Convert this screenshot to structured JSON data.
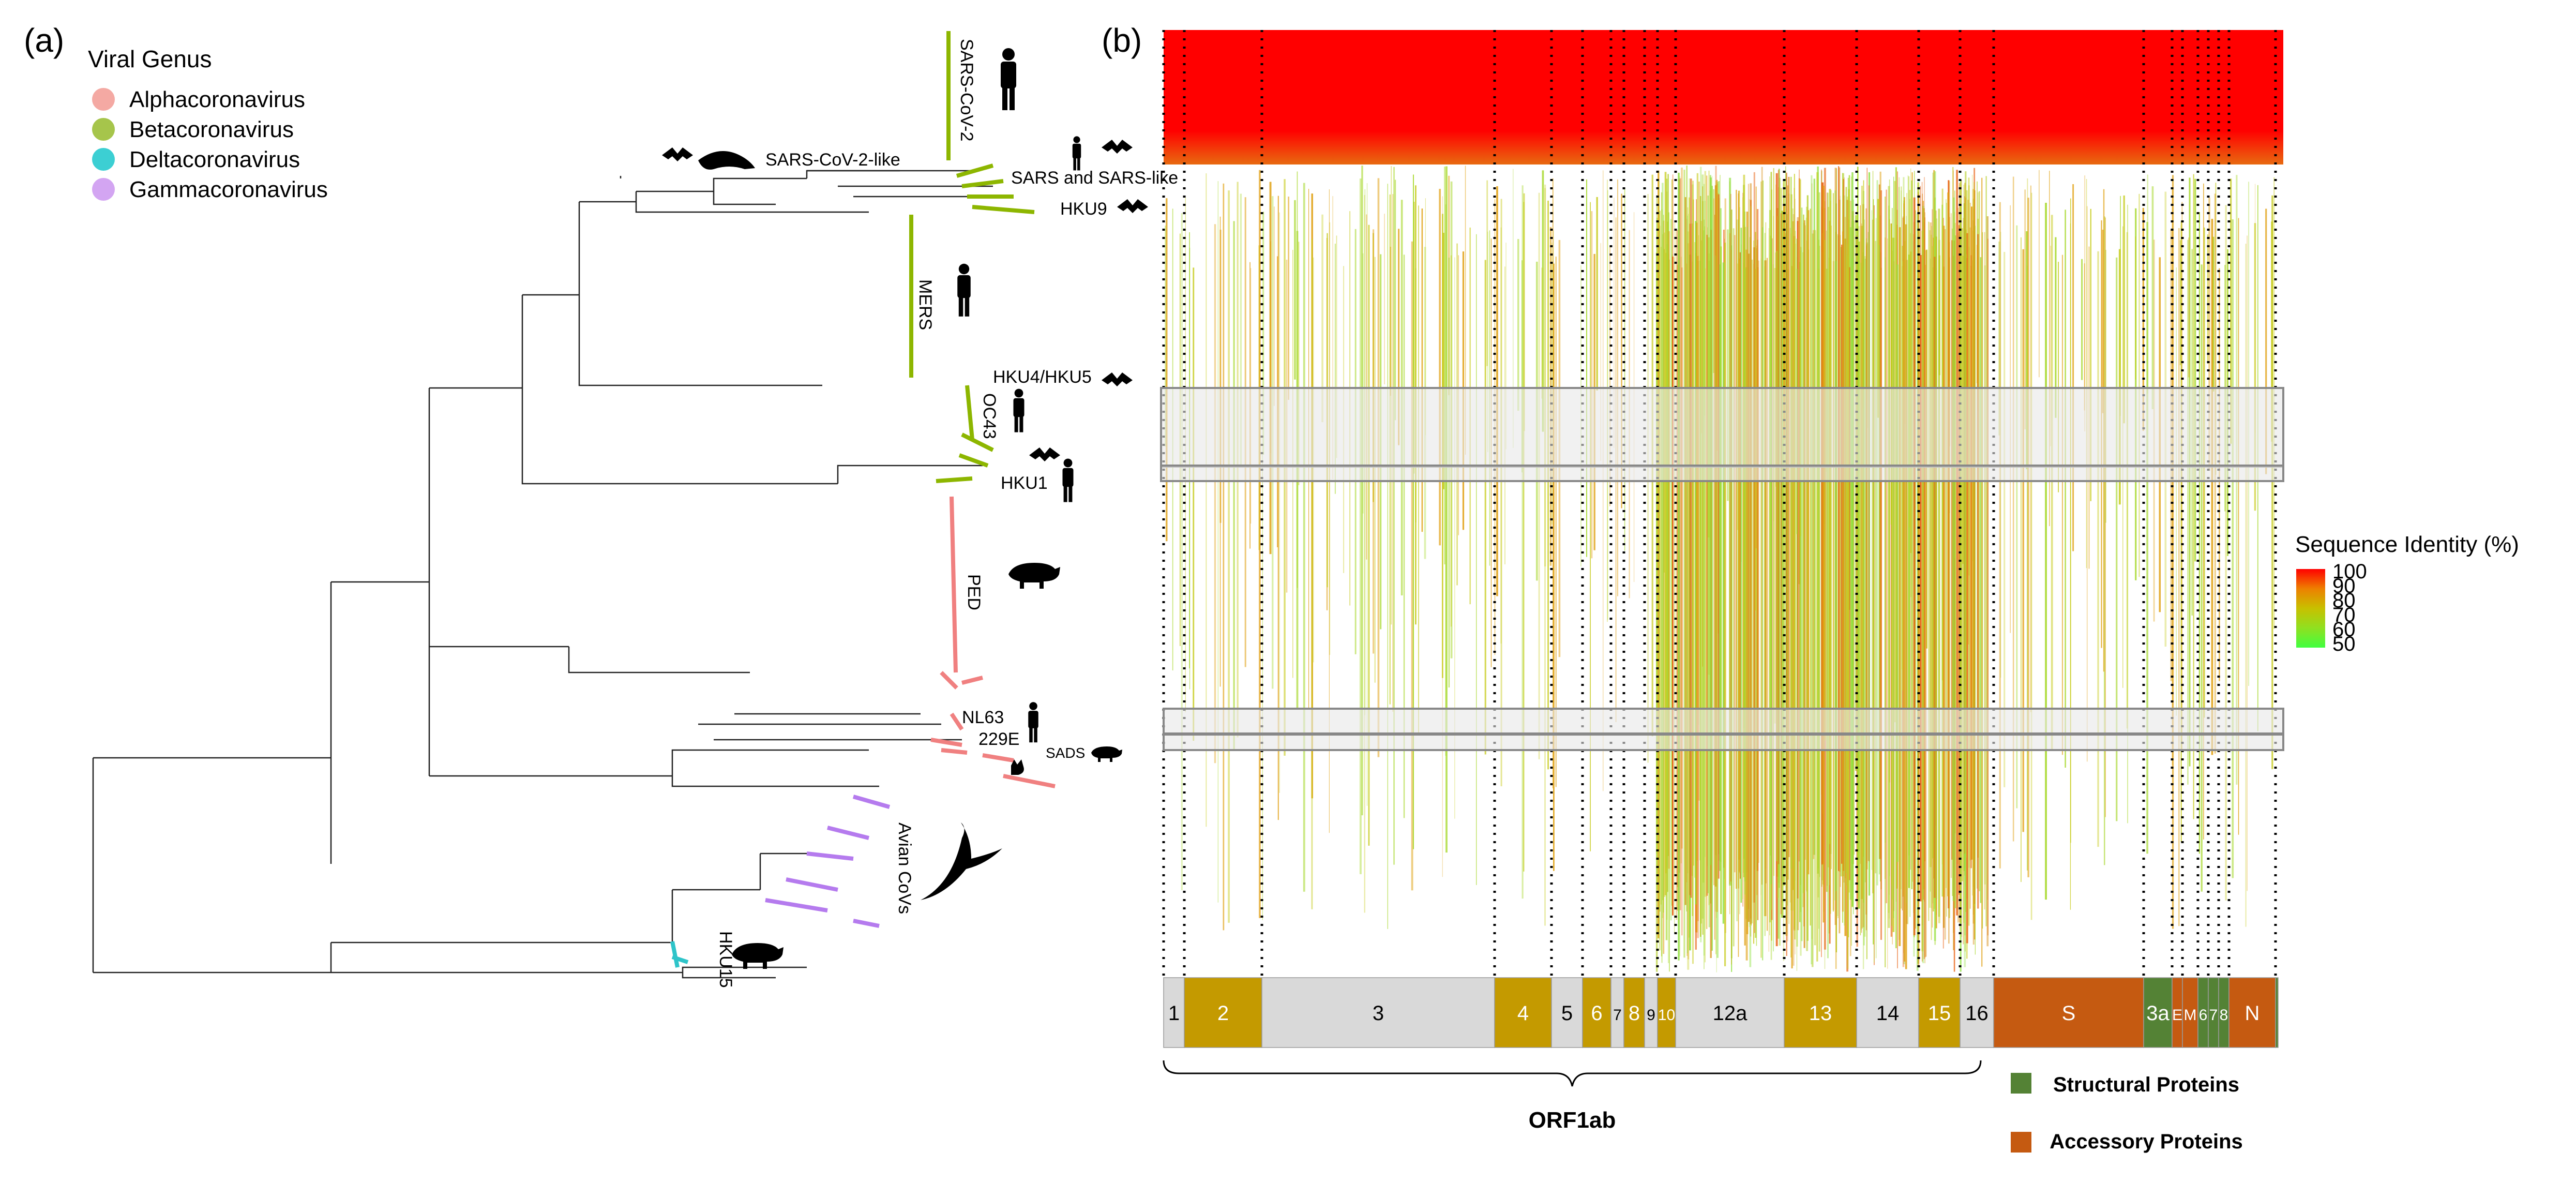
{
  "panel_a": {
    "label": "(a)",
    "legend": {
      "title": "Viral Genus",
      "items": [
        {
          "label": "Alphacoronavirus",
          "color": "#f4a9a3"
        },
        {
          "label": "Betacoronavirus",
          "color": "#a6c54b"
        },
        {
          "label": "Deltacoronavirus",
          "color": "#3ccfd3"
        },
        {
          "label": "Gammacoronavirus",
          "color": "#d3a5f2"
        }
      ]
    },
    "clades": {
      "sars_cov_2": "SARS-CoV-2",
      "sars_cov_2_like": "SARS-CoV-2-like",
      "sars_like": "SARS and SARS-like",
      "hku9": "HKU9",
      "mers": "MERS",
      "hku4_hku5": "HKU4/HKU5",
      "oc43": "OC43",
      "hku1": "HKU1",
      "ped": "PED",
      "nl63": "NL63",
      "e229": "229E",
      "sads": "SADS",
      "avian": "Avian CoVs",
      "hku15": "HKU15"
    },
    "colors": {
      "alpha": "#f08080",
      "beta": "#8db600",
      "gamma": "#b57bee",
      "delta": "#2ec4c9"
    }
  },
  "panel_b": {
    "label": "(b)",
    "colorbar": {
      "title": "Sequence Identity (%)",
      "ticks": [
        "100",
        "90",
        "80",
        "70",
        "60",
        "50"
      ],
      "colors": [
        "#ff0000",
        "#ee8000",
        "#c8c000",
        "#a8d800",
        "#80e830",
        "#40ff40"
      ]
    },
    "genome": {
      "segments": [
        {
          "label": "1",
          "kind": "nsp-light"
        },
        {
          "label": "2",
          "kind": "nsp-gold"
        },
        {
          "label": "3",
          "kind": "nsp-light"
        },
        {
          "label": "4",
          "kind": "nsp-gold"
        },
        {
          "label": "5",
          "kind": "nsp-light"
        },
        {
          "label": "6",
          "kind": "nsp-gold"
        },
        {
          "label": "7",
          "kind": "nsp-light"
        },
        {
          "label": "8",
          "kind": "nsp-gold"
        },
        {
          "label": "9",
          "kind": "nsp-light"
        },
        {
          "label": "10",
          "kind": "nsp-gold"
        },
        {
          "label": "12a",
          "kind": "nsp-light"
        },
        {
          "label": "13",
          "kind": "nsp-gold"
        },
        {
          "label": "14",
          "kind": "nsp-light"
        },
        {
          "label": "15",
          "kind": "nsp-gold"
        },
        {
          "label": "16",
          "kind": "nsp-light"
        },
        {
          "label": "S",
          "kind": "accessory"
        },
        {
          "label": "3a",
          "kind": "structural"
        },
        {
          "label": "E",
          "kind": "accessory"
        },
        {
          "label": "M",
          "kind": "accessory"
        },
        {
          "label": "6",
          "kind": "structural"
        },
        {
          "label": "7",
          "kind": "structural"
        },
        {
          "label": "8",
          "kind": "structural"
        },
        {
          "label": "N",
          "kind": "accessory"
        },
        {
          "label": "",
          "kind": "structural"
        }
      ],
      "kind_colors": {
        "nsp-light": "#d9d9d9",
        "nsp-gold": "#c49a00",
        "accessory": "#c55a11",
        "structural": "#548235"
      },
      "brace_label": "ORF1ab"
    },
    "protein_legend": [
      {
        "label": "Structural Proteins",
        "color": "#548235"
      },
      {
        "label": "Accessory Proteins",
        "color": "#c55a11"
      }
    ]
  }
}
